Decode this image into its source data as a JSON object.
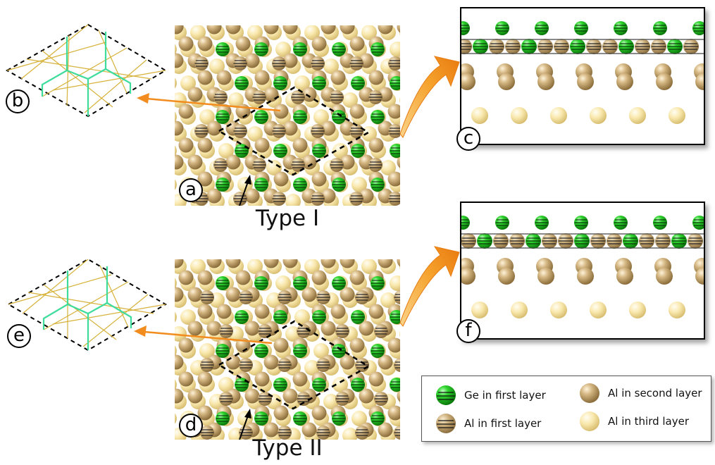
{
  "panels": {
    "a": "a",
    "b": "b",
    "c": "c",
    "d": "d",
    "e": "e",
    "f": "f"
  },
  "types": {
    "type1": "Type I",
    "type2": "Type II"
  },
  "legend": {
    "ge_first": "Ge in first layer",
    "al_first": "Al in first layer",
    "al_second": "Al in second layer",
    "al_third": "Al in third layer"
  },
  "colors": {
    "ge": "#1fc61f",
    "al_first": "#c9ac78",
    "al_second": "#c8a873",
    "al_third": "#f8e6a8",
    "arrow_orange": "#f28c1e",
    "wire_green": "#3ddc9b",
    "wire_gold": "#d6b23a"
  }
}
